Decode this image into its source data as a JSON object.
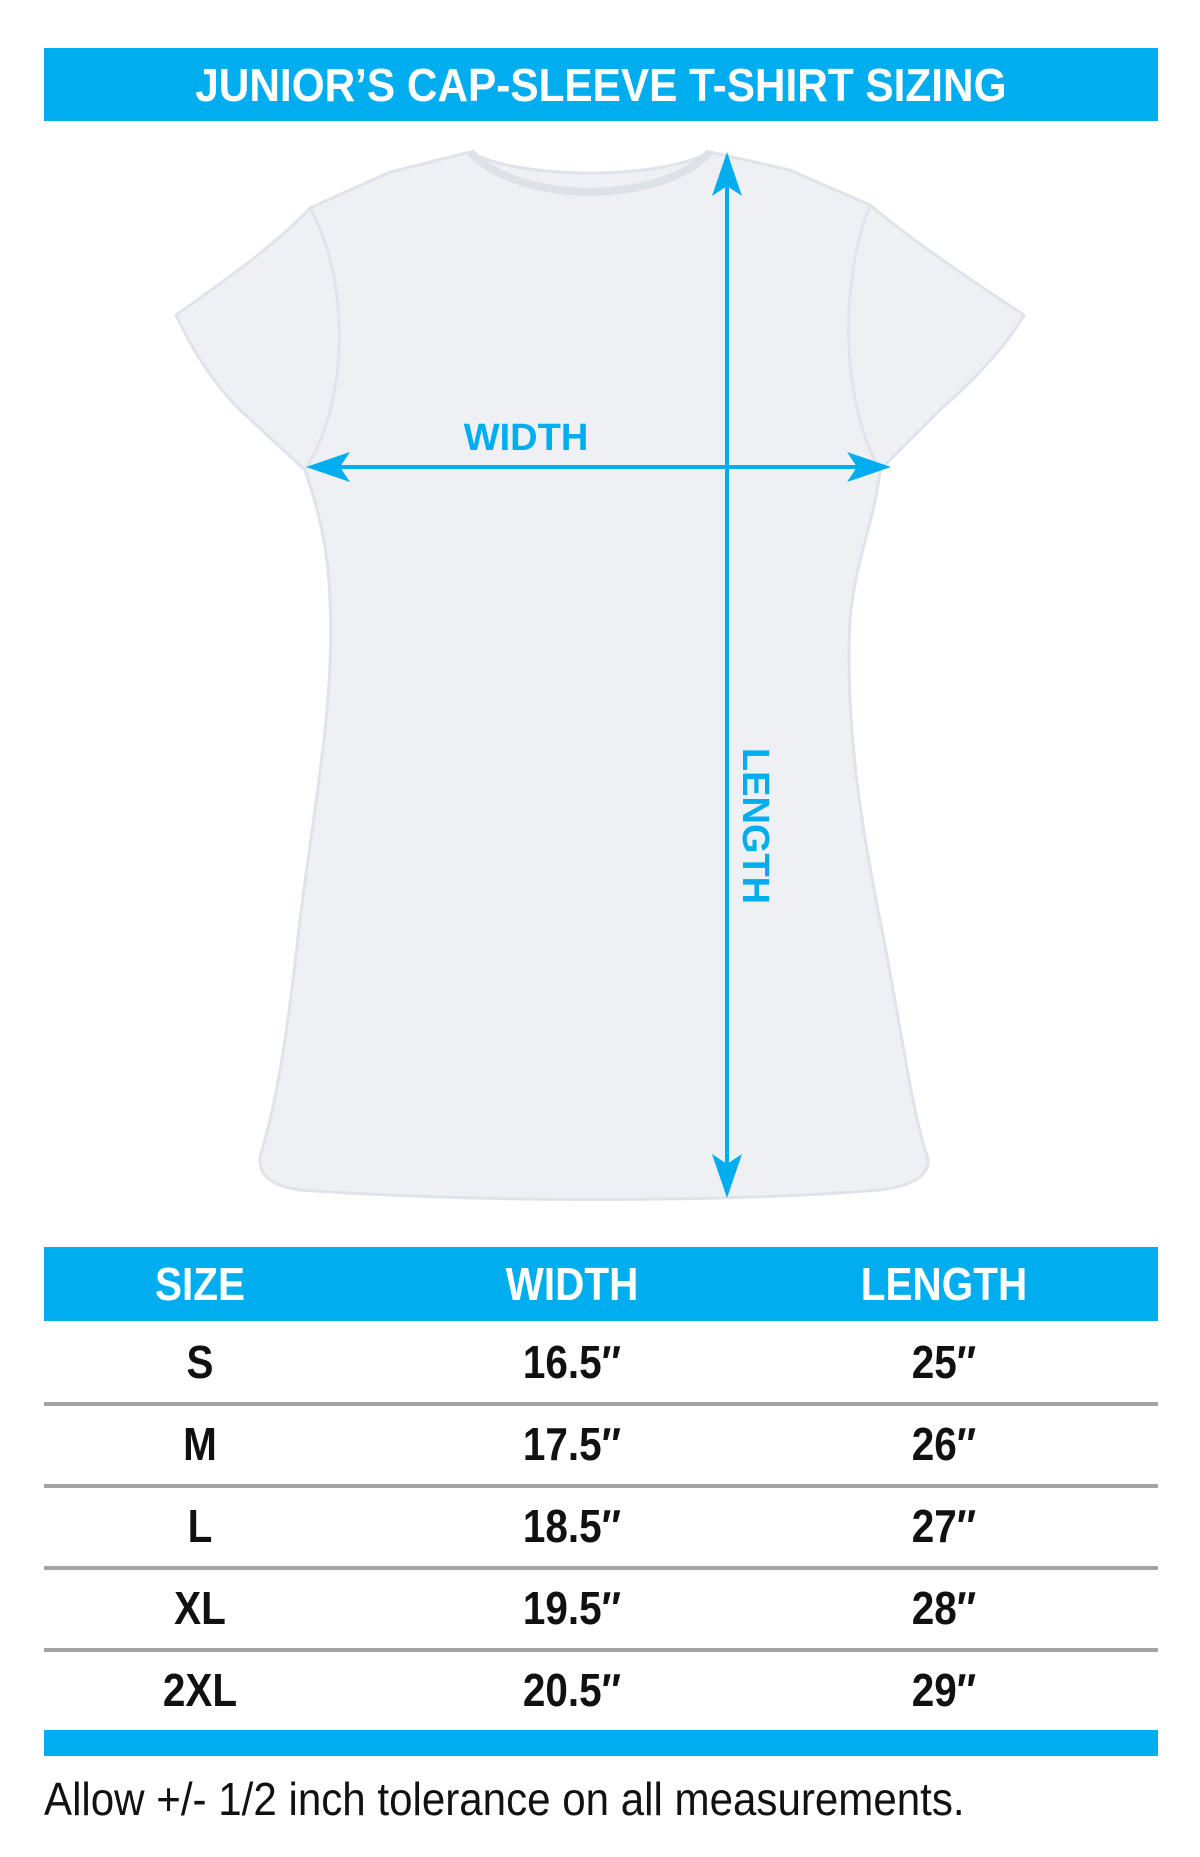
{
  "title": "JUNIOR’S CAP-SLEEVE T-SHIRT SIZING",
  "diagram": {
    "width_label": "WIDTH",
    "length_label": "LENGTH",
    "arrow_color": "#00aeef",
    "shirt_color": "#eef0f4"
  },
  "table": {
    "headers": [
      "SIZE",
      "WIDTH",
      "LENGTH"
    ],
    "rows": [
      [
        "S",
        "16.5″",
        "25″"
      ],
      [
        "M",
        "17.5″",
        "26″"
      ],
      [
        "L",
        "18.5″",
        "27″"
      ],
      [
        "XL",
        "19.5″",
        "28″"
      ],
      [
        "2XL",
        "20.5″",
        "29″"
      ]
    ]
  },
  "footer_note": "Allow +/- 1/2 inch tolerance on all measurements.",
  "colors": {
    "accent": "#00aeef",
    "divider": "#a3a3a3",
    "text": "#111111"
  }
}
